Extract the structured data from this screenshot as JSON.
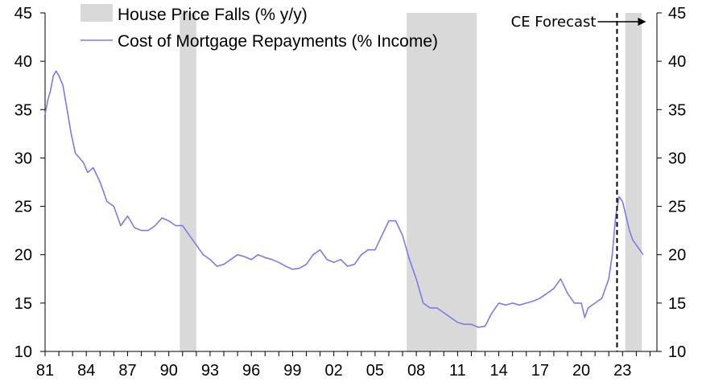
{
  "chart_data": {
    "type": "line",
    "title": "",
    "xlabel": "",
    "ylabel": "",
    "x_ticks": [
      "81",
      "84",
      "87",
      "90",
      "93",
      "96",
      "99",
      "02",
      "05",
      "08",
      "11",
      "14",
      "17",
      "20",
      "23"
    ],
    "x_tick_years": [
      1981,
      1984,
      1987,
      1990,
      1993,
      1996,
      1999,
      2002,
      2005,
      2008,
      2011,
      2014,
      2017,
      2020,
      2023
    ],
    "xlim": [
      1981,
      2025.5
    ],
    "ylim": [
      10,
      45
    ],
    "y_ticks": [
      10,
      15,
      20,
      25,
      30,
      35,
      40,
      45
    ],
    "y_tick_labels": [
      "10",
      "15",
      "20",
      "25",
      "30",
      "35",
      "40",
      "45"
    ],
    "grid": false,
    "legend_position": "top-left",
    "shaded_periods": {
      "name": "House Price Falls (% y/y)",
      "color": "#d9d9d9",
      "ranges": [
        [
          1990.8,
          1992.0
        ],
        [
          2007.3,
          2012.4
        ],
        [
          2023.2,
          2024.4
        ]
      ]
    },
    "series": [
      {
        "name": "Cost of Mortgage Repayments (% Income)",
        "color": "#7b7bea",
        "x": [
          1981.0,
          1981.2,
          1981.4,
          1981.6,
          1981.8,
          1982.0,
          1982.3,
          1982.6,
          1982.9,
          1983.2,
          1983.5,
          1983.8,
          1984.1,
          1984.5,
          1985.0,
          1985.5,
          1986.0,
          1986.5,
          1987.0,
          1987.5,
          1988.0,
          1988.5,
          1989.0,
          1989.5,
          1990.0,
          1990.5,
          1991.0,
          1991.5,
          1992.0,
          1992.5,
          1993.0,
          1993.5,
          1994.0,
          1994.5,
          1995.0,
          1995.5,
          1996.0,
          1996.5,
          1997.0,
          1997.5,
          1998.0,
          1998.5,
          1999.0,
          1999.5,
          2000.0,
          2000.5,
          2001.0,
          2001.5,
          2002.0,
          2002.5,
          2003.0,
          2003.5,
          2004.0,
          2004.5,
          2005.0,
          2005.5,
          2006.0,
          2006.5,
          2007.0,
          2007.5,
          2008.0,
          2008.5,
          2009.0,
          2009.5,
          2010.0,
          2010.5,
          2011.0,
          2011.5,
          2012.0,
          2012.5,
          2013.0,
          2013.5,
          2014.0,
          2014.5,
          2015.0,
          2015.5,
          2016.0,
          2016.5,
          2017.0,
          2017.5,
          2018.0,
          2018.5,
          2019.0,
          2019.5,
          2020.0,
          2020.25,
          2020.5,
          2021.0,
          2021.5,
          2022.0,
          2022.25,
          2022.5,
          2022.75,
          2023.0,
          2023.25,
          2023.5,
          2023.75,
          2024.0,
          2024.25,
          2024.5
        ],
        "values": [
          34.5,
          36.0,
          37.0,
          38.5,
          39.0,
          38.5,
          37.5,
          35.0,
          32.5,
          30.5,
          30.0,
          29.5,
          28.5,
          29.0,
          27.5,
          25.5,
          25.0,
          23.0,
          24.0,
          22.8,
          22.5,
          22.5,
          23.0,
          23.8,
          23.5,
          23.0,
          23.0,
          22.0,
          21.0,
          20.0,
          19.5,
          18.8,
          19.0,
          19.5,
          20.0,
          19.8,
          19.5,
          20.0,
          19.7,
          19.5,
          19.2,
          18.8,
          18.5,
          18.6,
          19.0,
          20.0,
          20.5,
          19.5,
          19.2,
          19.5,
          18.8,
          19.0,
          20.0,
          20.5,
          20.5,
          22.0,
          23.5,
          23.5,
          22.0,
          19.5,
          17.5,
          15.0,
          14.5,
          14.5,
          14.0,
          13.5,
          13.0,
          12.8,
          12.8,
          12.5,
          12.6,
          14.0,
          15.0,
          14.8,
          15.0,
          14.8,
          15.0,
          15.2,
          15.5,
          16.0,
          16.5,
          17.5,
          16.0,
          15.0,
          15.0,
          13.5,
          14.5,
          15.0,
          15.5,
          17.5,
          20.0,
          24.0,
          26.0,
          25.5,
          24.0,
          22.5,
          21.5,
          21.0,
          20.5,
          20.0
        ]
      }
    ],
    "annotations": [
      {
        "text": "CE Forecast",
        "x": 2022.6,
        "type": "vertical-dashed-line",
        "arrow": "right"
      }
    ]
  },
  "legend": {
    "shade_label": "House Price Falls (% y/y)",
    "line_label": "Cost of Mortgage Repayments (% Income)"
  },
  "annotation": {
    "forecast_label": "CE Forecast"
  }
}
